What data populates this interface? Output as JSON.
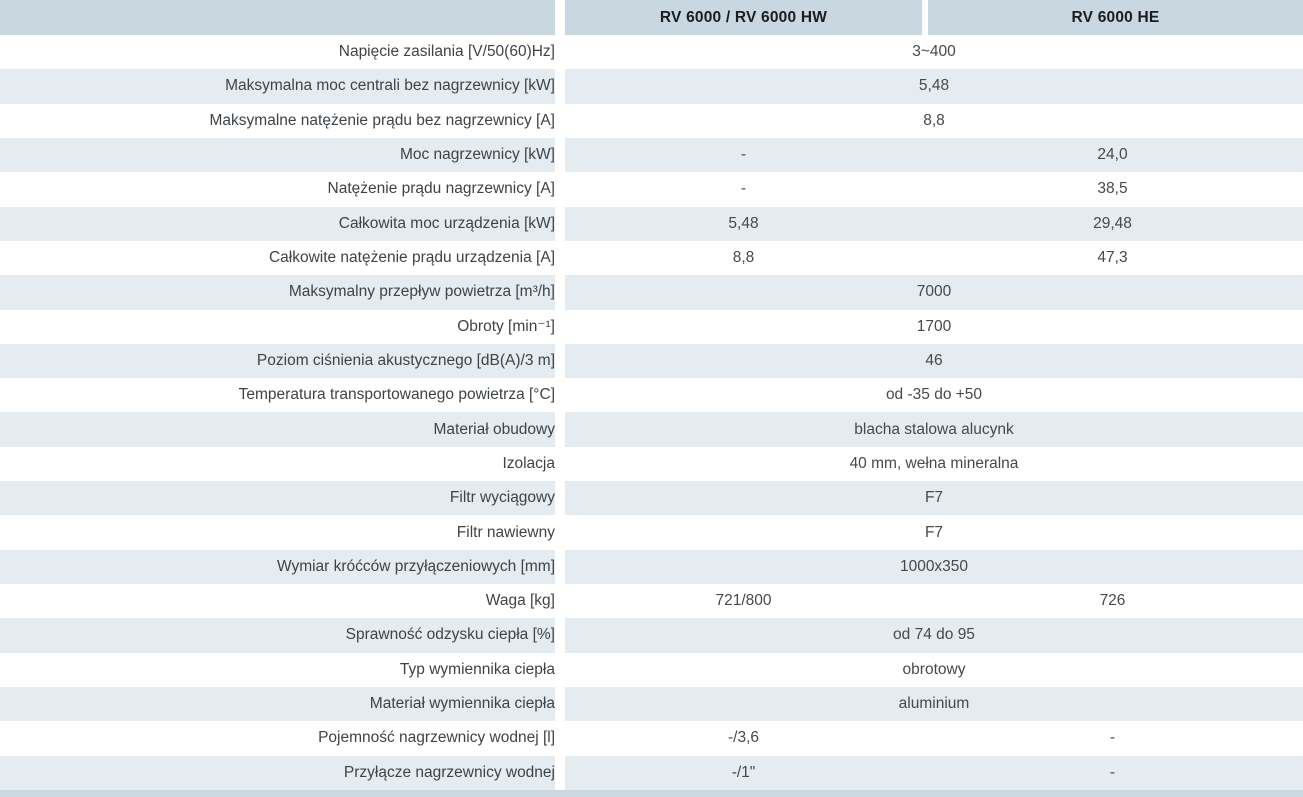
{
  "table": {
    "columns": [
      {
        "label": ""
      },
      {
        "label": "RV 6000 / RV 6000 HW"
      },
      {
        "label": "RV 6000 HE"
      }
    ],
    "rows": [
      {
        "label": "Napięcie zasilania [V/50(60)Hz]",
        "span": "3~400"
      },
      {
        "label": "Maksymalna moc centrali bez nagrzewnicy [kW]",
        "span": "5,48"
      },
      {
        "label": "Maksymalne natężenie prądu bez nagrzewnicy [A]",
        "span": "8,8"
      },
      {
        "label": "Moc nagrzewnicy [kW]",
        "values": [
          "-",
          "24,0"
        ]
      },
      {
        "label": "Natężenie prądu nagrzewnicy [A]",
        "values": [
          "-",
          "38,5"
        ]
      },
      {
        "label": "Całkowita moc urządzenia [kW]",
        "values": [
          "5,48",
          "29,48"
        ]
      },
      {
        "label": "Całkowite natężenie prądu urządzenia [A]",
        "values": [
          "8,8",
          "47,3"
        ]
      },
      {
        "label": "Maksymalny przepływ powietrza [m³/h]",
        "span": "7000"
      },
      {
        "label": "Obroty [min⁻¹]",
        "span": "1700"
      },
      {
        "label": "Poziom ciśnienia akustycznego  [dB(A)/3 m]",
        "span": "46"
      },
      {
        "label": "Temperatura transportowanego powietrza [°C]",
        "span": "od -35 do +50"
      },
      {
        "label": "Materiał obudowy",
        "span": "blacha stalowa alucynk"
      },
      {
        "label": "Izolacja",
        "span": "40 mm, wełna mineralna"
      },
      {
        "label": "Filtr wyciągowy",
        "span": "F7"
      },
      {
        "label": "Filtr nawiewny",
        "span": "F7"
      },
      {
        "label": "Wymiar króćców przyłączeniowych [mm]",
        "span": "1000x350"
      },
      {
        "label": "Waga [kg]",
        "values": [
          "721/800",
          "726"
        ]
      },
      {
        "label": "Sprawność odzysku ciepła [%]",
        "span": "od 74 do 95"
      },
      {
        "label": "Typ wymiennika ciepła",
        "span": "obrotowy"
      },
      {
        "label": "Materiał wymiennika ciepła",
        "span": "aluminium"
      },
      {
        "label": "Pojemność nagrzewnicy wodnej [l]",
        "values": [
          "-/3,6",
          "-"
        ]
      },
      {
        "label": "Przyłącze nagrzewnicy wodnej",
        "values": [
          "-/1\"",
          "-"
        ]
      }
    ]
  },
  "colors": {
    "header_bg": "#c9d7e0",
    "row_tint_bg": "#e4ebf1",
    "row_plain_bg": "#ffffff",
    "bottom_bar_bg": "#ccd8e1",
    "header_text": "#1b1d1f",
    "label_text": "#3e4347",
    "value_text": "#45494d"
  }
}
